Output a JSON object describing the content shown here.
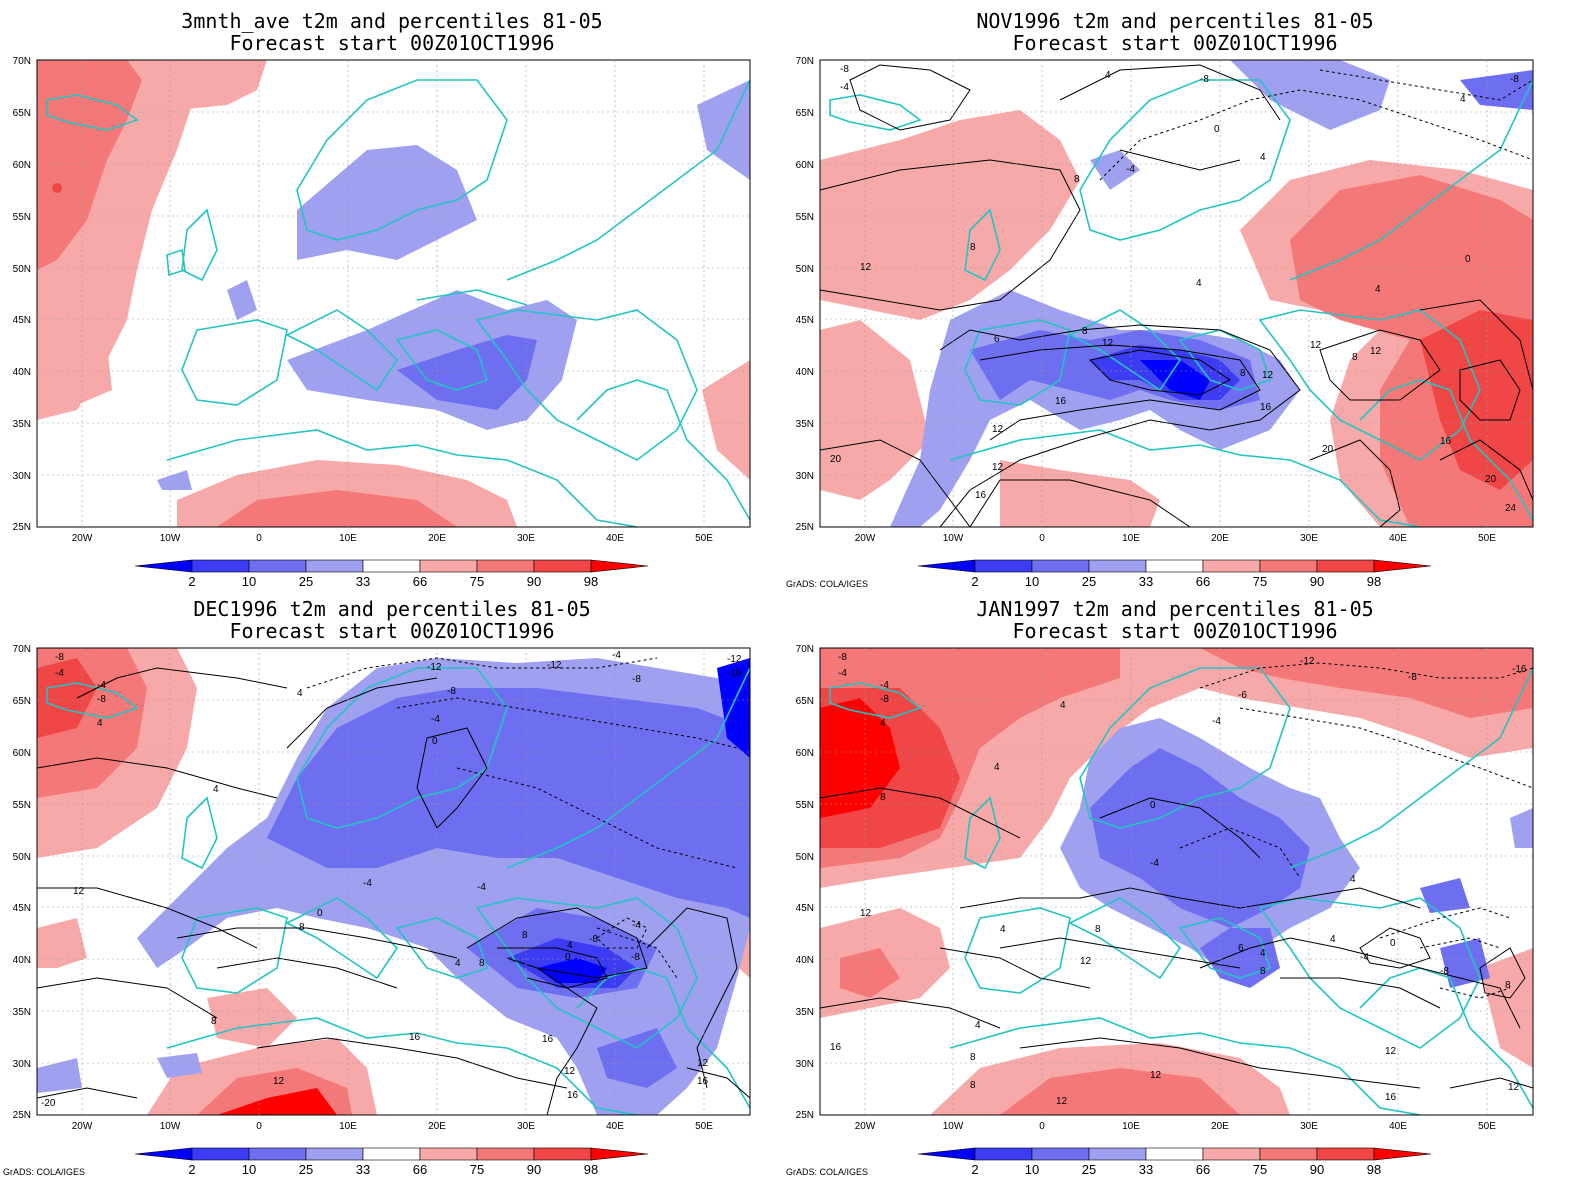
{
  "panels": [
    {
      "title_line1": "3mnth_ave t2m and percentiles 81-05",
      "title_line2": "Forecast start 00Z01OCT1996",
      "credit": "",
      "contour_labels": []
    },
    {
      "title_line1": "NOV1996 t2m and percentiles 81-05",
      "title_line2": "Forecast start 00Z01OCT1996",
      "credit": "GrADS: COLA/IGES",
      "contour_labels": [
        "-8",
        "-4",
        "4",
        "-8",
        "-8",
        "4",
        "0",
        "4",
        "-4",
        "8",
        "8",
        "12",
        "0",
        "4",
        "4",
        "6",
        "8",
        "12",
        "12",
        "8",
        "12",
        "8",
        "12",
        "16",
        "16",
        "12",
        "12",
        "16",
        "20",
        "16",
        "20",
        "20",
        "24"
      ]
    },
    {
      "title_line1": "DEC1996 t2m and percentiles 81-05",
      "title_line2": "Forecast start 00Z01OCT1996",
      "credit": "GrADS: COLA/IGES",
      "contour_labels": [
        "-8",
        "-4",
        "-4",
        "-8",
        "4",
        "-12",
        "-12",
        "-8",
        "-4",
        "0",
        "4",
        "-4",
        "-8",
        "-12",
        "-16",
        "4",
        "12",
        "-4",
        "0",
        "-4",
        "8",
        "8",
        "-8",
        "4",
        "-4",
        "4",
        "0",
        "8",
        "-8",
        "16",
        "8",
        "12",
        "16",
        "12",
        "16",
        "12",
        "16",
        "-20"
      ]
    },
    {
      "title_line1": "JAN1997 t2m and percentiles 81-05",
      "title_line2": "Forecast start 00Z01OCT1996",
      "credit": "GrADS: COLA/IGES",
      "contour_labels": [
        "-8",
        "-4",
        "-4",
        "-8",
        "4",
        "4",
        "-12",
        "-6",
        "-8",
        "-4",
        "-16",
        "4",
        "8",
        "0",
        "-4",
        "4",
        "12",
        "4",
        "8",
        "6",
        "4",
        "8",
        "4",
        "0",
        "-4",
        "-8",
        "8",
        "12",
        "8",
        "12",
        "16",
        "12",
        "16",
        "4",
        "8",
        "12",
        "12"
      ]
    }
  ],
  "lat_labels": [
    "70N",
    "65N",
    "60N",
    "55N",
    "50N",
    "45N",
    "40N",
    "35N",
    "30N",
    "25N"
  ],
  "lon_labels": [
    "20W",
    "10W",
    "0",
    "10E",
    "20E",
    "30E",
    "40E",
    "50E"
  ],
  "colorbar_labels": [
    "2",
    "10",
    "25",
    "33",
    "66",
    "75",
    "90",
    "98"
  ],
  "colorbar_colors": [
    "#0000ff",
    "#3c3cf5",
    "#6e6ef0",
    "#a0a0f0",
    "#ffffff",
    "#f7a9a9",
    "#f57878",
    "#f04646",
    "#ff0000"
  ],
  "colors": {
    "coast": "#22c4c4",
    "contour": "#000000",
    "blue_levels": [
      "#a0a0f0",
      "#6e6ef0",
      "#3c3cf5",
      "#0000ff"
    ],
    "red_levels": [
      "#f7a9a9",
      "#f57878",
      "#f04646",
      "#ff0000"
    ]
  }
}
